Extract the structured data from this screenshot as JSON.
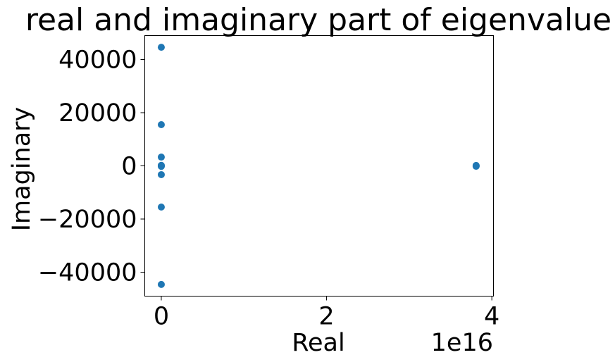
{
  "chart_data": {
    "type": "scatter",
    "title": "real and imaginary part of eigenvalue",
    "xlabel": "Real",
    "ylabel": "Imaginary",
    "x_offset_label": "1e16",
    "xlim": [
      -2000000000000000.0,
      4.02e+16
    ],
    "ylim": [
      -49000,
      49000
    ],
    "x_ticks": [
      0,
      2e+16,
      4e+16
    ],
    "x_tick_labels": [
      "0",
      "2",
      "4"
    ],
    "y_ticks": [
      -40000,
      -20000,
      0,
      20000,
      40000
    ],
    "y_tick_labels": [
      "−40000",
      "−20000",
      "0",
      "20000",
      "40000"
    ],
    "grid": false,
    "marker_color": "#1f77b4",
    "points": [
      {
        "x": 0,
        "y": 44600
      },
      {
        "x": 0,
        "y": -44600
      },
      {
        "x": 0,
        "y": 15500
      },
      {
        "x": 0,
        "y": -15500
      },
      {
        "x": 0,
        "y": 3300
      },
      {
        "x": 0,
        "y": -3300
      },
      {
        "x": 0,
        "y": 200
      },
      {
        "x": 0,
        "y": -200
      },
      {
        "x": 0,
        "y": 0
      },
      {
        "x": 3.81e+16,
        "y": 0
      },
      {
        "x": 3.81e+16,
        "y": 150
      },
      {
        "x": 3.81e+16,
        "y": -150
      }
    ]
  }
}
